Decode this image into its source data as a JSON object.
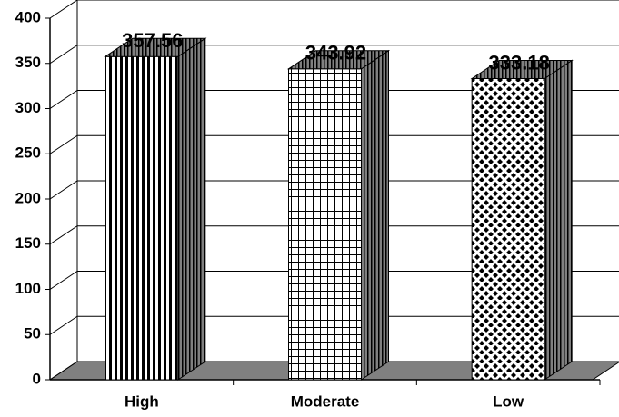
{
  "chart_data": {
    "type": "bar3d",
    "categories": [
      "High",
      "Moderate",
      "Low"
    ],
    "values": [
      357.56,
      343.92,
      333.18
    ],
    "ylim": [
      0,
      400
    ],
    "yticks": [
      0,
      50,
      100,
      150,
      200,
      250,
      300,
      350,
      400
    ],
    "grid": true
  }
}
